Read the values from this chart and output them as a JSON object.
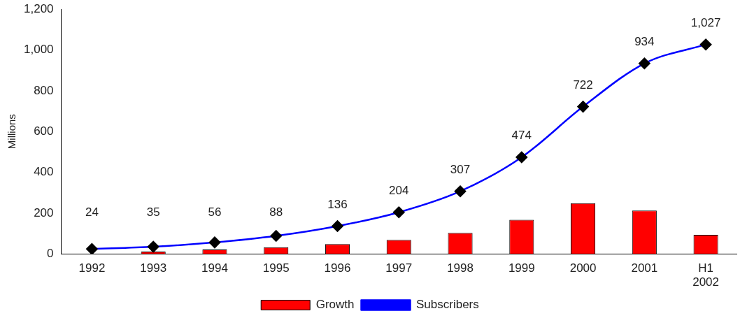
{
  "chart_data": {
    "type": "bar",
    "ylabel": "Millions",
    "categories": [
      "1992",
      "1993",
      "1994",
      "1995",
      "1996",
      "1997",
      "1998",
      "1999",
      "2000",
      "2001",
      "H1 2002"
    ],
    "series": [
      {
        "name": "Growth",
        "color": "#ff0000",
        "values": [
          null,
          11,
          21,
          32,
          48,
          68,
          103,
          167,
          248,
          212,
          93
        ]
      },
      {
        "name": "Subscribers",
        "type": "line",
        "color": "#0000ff",
        "marker": "diamond",
        "values": [
          24,
          35,
          56,
          88,
          136,
          204,
          307,
          474,
          722,
          934,
          1027
        ],
        "value_labels": [
          "24",
          "35",
          "56",
          "88",
          "136",
          "204",
          "307",
          "474",
          "722",
          "934",
          "1,027"
        ]
      }
    ],
    "ylim": [
      0,
      1200
    ],
    "yticks": [
      {
        "value": 0,
        "label": "0"
      },
      {
        "value": 200,
        "label": "200"
      },
      {
        "value": 400,
        "label": "400"
      },
      {
        "value": 600,
        "label": "600"
      },
      {
        "value": 800,
        "label": "800"
      },
      {
        "value": 1000,
        "label": "1,000"
      },
      {
        "value": 1200,
        "label": "1,200"
      }
    ],
    "grid": false,
    "legend": "bottom"
  }
}
